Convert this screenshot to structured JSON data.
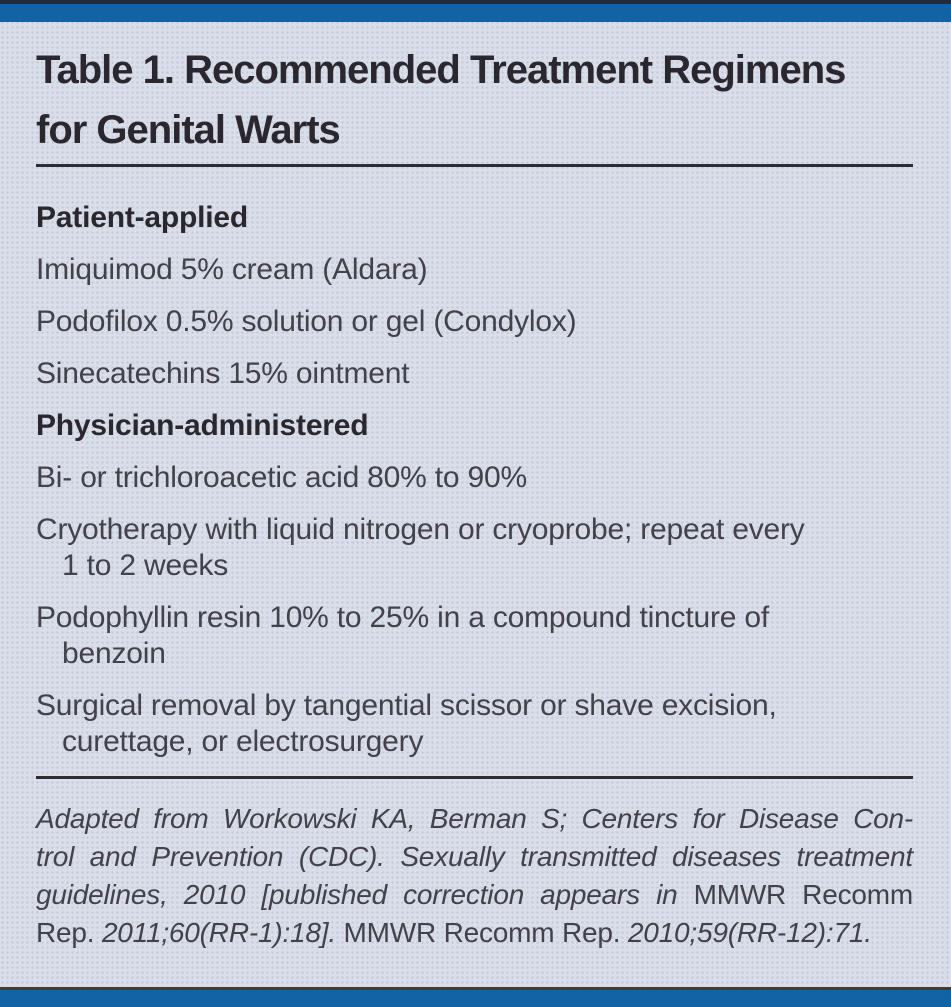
{
  "colors": {
    "accent_blue": "#1163a6",
    "bar_edge_top": "#222c3e",
    "bar_edge_bottom": "#413b34",
    "panel_bg": "#dadee9",
    "heading_color": "#2a282e",
    "body_color": "#434149",
    "rule_color": "#2e2c32"
  },
  "table": {
    "title_lines": [
      "Table 1. Recommended Treatment Regimens",
      "for Genital Warts"
    ],
    "sections": [
      {
        "heading": "Patient-applied",
        "items": [
          {
            "lines": [
              "Imiquimod 5% cream (Aldara)"
            ]
          },
          {
            "lines": [
              "Podofilox 0.5% solution or gel (Condylox)"
            ]
          },
          {
            "lines": [
              "Sinecatechins 15% ointment"
            ]
          }
        ]
      },
      {
        "heading": "Physician-administered",
        "items": [
          {
            "lines": [
              "Bi- or trichloroacetic acid 80% to 90%"
            ]
          },
          {
            "lines": [
              "Cryotherapy with liquid nitrogen or cryoprobe; repeat every",
              "1 to 2 weeks"
            ]
          },
          {
            "lines": [
              "Podophyllin resin 10% to 25% in a compound tincture of",
              "benzoin"
            ]
          },
          {
            "lines": [
              "Surgical removal by tangential scissor or shave excision,",
              "curettage, or electrosurgery"
            ]
          }
        ]
      }
    ],
    "footnote_lines": [
      [
        {
          "style": "italic",
          "text": "Adapted from Workowski KA, Berman S; Centers for Disease Con-"
        }
      ],
      [
        {
          "style": "italic",
          "text": "trol and Prevention (CDC). Sexually transmitted diseases treatment"
        }
      ],
      [
        {
          "style": "italic",
          "text": "guidelines, 2010 [published correction appears in "
        },
        {
          "style": "roman",
          "text": "MMWR Recomm"
        }
      ],
      [
        {
          "style": "roman",
          "text": "Rep. "
        },
        {
          "style": "italic",
          "text": "2011;60(RR-1):18]. "
        },
        {
          "style": "roman",
          "text": "MMWR Recomm Rep. "
        },
        {
          "style": "italic",
          "text": "2010;59(RR-12):71."
        }
      ]
    ]
  }
}
